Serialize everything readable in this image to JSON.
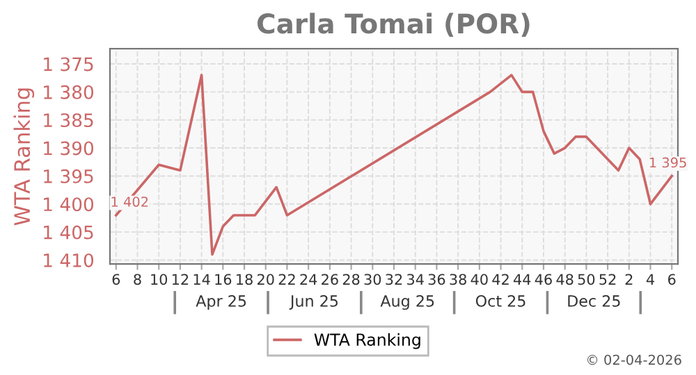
{
  "chart_data": {
    "type": "line",
    "title": "Carla Tomai (POR)",
    "ylabel": "WTA Ranking",
    "x": [
      "2025-01-22",
      "2025-02-19",
      "2025-03-05",
      "2025-03-19",
      "2025-03-26",
      "2025-04-02",
      "2025-04-09",
      "2025-04-23",
      "2025-05-07",
      "2025-05-14",
      "2025-09-24",
      "2025-10-08",
      "2025-10-15",
      "2025-10-22",
      "2025-10-29",
      "2025-11-05",
      "2025-11-12",
      "2025-11-19",
      "2025-11-26",
      "2025-12-17",
      "2025-12-24",
      "2025-12-31",
      "2026-01-07",
      "2026-01-21"
    ],
    "series": [
      {
        "name": "WTA Ranking",
        "color": "#cc6666",
        "values": [
          1402,
          1393,
          1394,
          1377,
          1409,
          1404,
          1402,
          1402,
          1397,
          1402,
          1380,
          1377,
          1380,
          1380,
          1387,
          1391,
          1390,
          1388,
          1388,
          1394,
          1390,
          1392,
          1400,
          1395
        ]
      }
    ],
    "ylim": [
      1410.7,
      1372.3
    ],
    "yticks": [
      {
        "value": 1375,
        "label": "1 375"
      },
      {
        "value": 1380,
        "label": "1 380"
      },
      {
        "value": 1385,
        "label": "1 385"
      },
      {
        "value": 1390,
        "label": "1 390"
      },
      {
        "value": 1395,
        "label": "1 395"
      },
      {
        "value": 1400,
        "label": "1 400"
      },
      {
        "value": 1405,
        "label": "1 405"
      },
      {
        "value": 1410,
        "label": "1 410"
      }
    ],
    "xlim": [
      "2025-01-18",
      "2026-01-25"
    ],
    "xticks": [
      {
        "value": "2025-01-22",
        "label": "6"
      },
      {
        "value": "2025-02-05",
        "label": "8"
      },
      {
        "value": "2025-02-19",
        "label": "10"
      },
      {
        "value": "2025-03-05",
        "label": "12"
      },
      {
        "value": "2025-03-19",
        "label": "14"
      },
      {
        "value": "2025-04-02",
        "label": "16"
      },
      {
        "value": "2025-04-16",
        "label": "18"
      },
      {
        "value": "2025-04-30",
        "label": "20"
      },
      {
        "value": "2025-05-14",
        "label": "22"
      },
      {
        "value": "2025-05-28",
        "label": "24"
      },
      {
        "value": "2025-06-11",
        "label": "26"
      },
      {
        "value": "2025-06-25",
        "label": "28"
      },
      {
        "value": "2025-07-09",
        "label": "30"
      },
      {
        "value": "2025-07-23",
        "label": "32"
      },
      {
        "value": "2025-08-06",
        "label": "34"
      },
      {
        "value": "2025-08-20",
        "label": "36"
      },
      {
        "value": "2025-09-03",
        "label": "38"
      },
      {
        "value": "2025-09-17",
        "label": "40"
      },
      {
        "value": "2025-10-01",
        "label": "42"
      },
      {
        "value": "2025-10-15",
        "label": "44"
      },
      {
        "value": "2025-10-29",
        "label": "46"
      },
      {
        "value": "2025-11-12",
        "label": "48"
      },
      {
        "value": "2025-11-26",
        "label": "50"
      },
      {
        "value": "2025-12-10",
        "label": "52"
      },
      {
        "value": "2025-12-24",
        "label": "2"
      },
      {
        "value": "2026-01-07",
        "label": "4"
      },
      {
        "value": "2026-01-21",
        "label": "6"
      }
    ],
    "x2lim": [
      "2025-01-18",
      "2026-01-25"
    ],
    "x2ticks": [
      {
        "value": "2025-04-01",
        "label": "Apr 25"
      },
      {
        "value": "2025-06-01",
        "label": "Jun 25"
      },
      {
        "value": "2025-08-01",
        "label": "Aug 25"
      },
      {
        "value": "2025-10-01",
        "label": "Oct 25"
      },
      {
        "value": "2025-12-01",
        "label": "Dec 25"
      }
    ],
    "annotations": [
      {
        "text": "1 402",
        "x": "2025-01-22",
        "y": 1402
      },
      {
        "text": "1 395",
        "x": "2026-01-21",
        "y": 1395
      },
      "© 02-04-2026"
    ],
    "grid": true,
    "legend": "bottom",
    "marker": "none",
    "line_style": "solid"
  }
}
